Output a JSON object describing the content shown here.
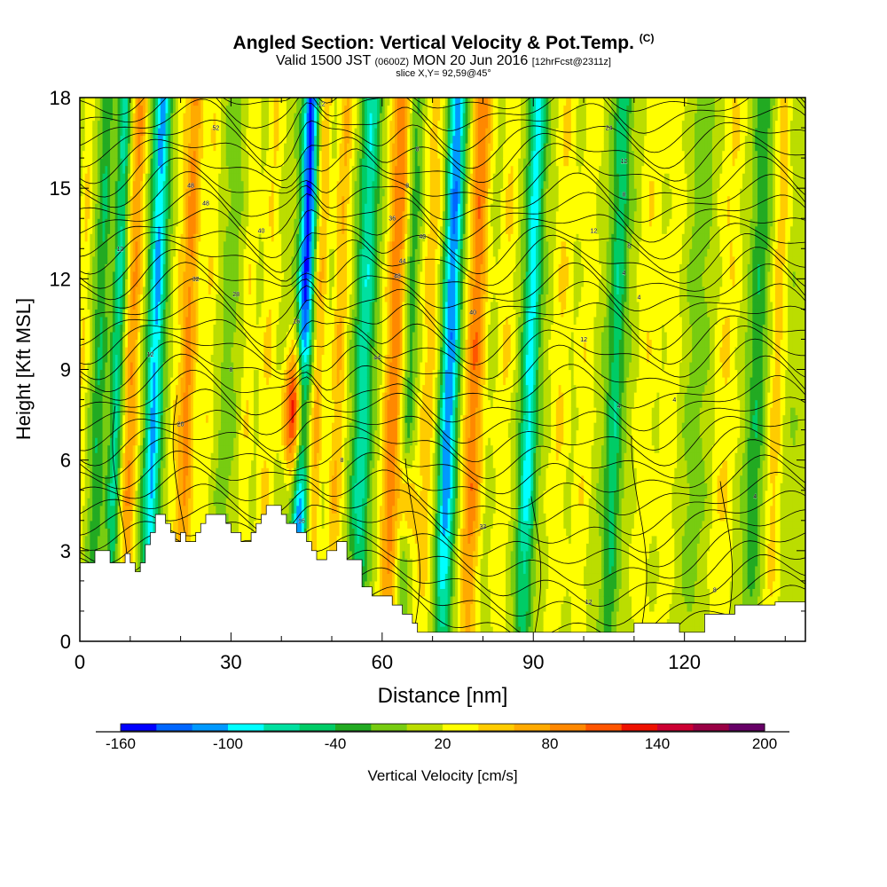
{
  "header": {
    "title_main": "Angled Section: Vertical Velocity & Pot.Temp.",
    "title_tag": "(C)",
    "valid_a": "Valid 1500 JST",
    "valid_utc": "(0600Z)",
    "valid_b": "MON 20 Jun 2016",
    "forecast": "[12hrFcst@2311z]",
    "slice": "slice X,Y= 92,59@45°"
  },
  "chart_data": {
    "type": "heatmap",
    "xlabel": "Distance [nm]",
    "ylabel": "Height [Kft MSL]",
    "x_range": [
      0,
      144
    ],
    "y_range": [
      0,
      18
    ],
    "x_ticks": [
      0,
      30,
      60,
      90,
      120
    ],
    "y_ticks": [
      0,
      3,
      6,
      9,
      12,
      15,
      18
    ],
    "colorbar": {
      "label": "Vertical Velocity [cm/s]",
      "min": -160,
      "max": 200,
      "step": 20,
      "tick_values": [
        -160,
        -100,
        -40,
        20,
        80,
        140,
        200
      ],
      "colors": [
        "#0000ff",
        "#0066ff",
        "#0099ff",
        "#00ffff",
        "#00e0a0",
        "#00cc66",
        "#22aa22",
        "#77cc11",
        "#bbdd00",
        "#ffff00",
        "#ffcc00",
        "#ffaa00",
        "#ff8800",
        "#ff5500",
        "#ee1100",
        "#cc0033",
        "#990044",
        "#660066"
      ]
    },
    "terrain_kft": [
      [
        0,
        2.6
      ],
      [
        3,
        2.6
      ],
      [
        3,
        3.0
      ],
      [
        6,
        3.0
      ],
      [
        6,
        2.6
      ],
      [
        9,
        2.6
      ],
      [
        9,
        2.9
      ],
      [
        10,
        2.9
      ],
      [
        10,
        2.6
      ],
      [
        11,
        2.6
      ],
      [
        11,
        2.3
      ],
      [
        12,
        2.3
      ],
      [
        12,
        2.6
      ],
      [
        13,
        2.6
      ],
      [
        13,
        3.2
      ],
      [
        14,
        3.2
      ],
      [
        14,
        3.6
      ],
      [
        15,
        3.6
      ],
      [
        15,
        4.2
      ],
      [
        17,
        4.2
      ],
      [
        17,
        3.9
      ],
      [
        18,
        3.9
      ],
      [
        18,
        3.6
      ],
      [
        19,
        3.6
      ],
      [
        19,
        3.3
      ],
      [
        20,
        3.3
      ],
      [
        20,
        3.6
      ],
      [
        21,
        3.6
      ],
      [
        21,
        3.3
      ],
      [
        23,
        3.3
      ],
      [
        23,
        3.6
      ],
      [
        24,
        3.6
      ],
      [
        24,
        3.9
      ],
      [
        25,
        3.9
      ],
      [
        25,
        4.2
      ],
      [
        29,
        4.2
      ],
      [
        29,
        3.9
      ],
      [
        30,
        3.9
      ],
      [
        30,
        3.6
      ],
      [
        32,
        3.6
      ],
      [
        32,
        3.3
      ],
      [
        34,
        3.3
      ],
      [
        34,
        3.6
      ],
      [
        35,
        3.6
      ],
      [
        35,
        3.9
      ],
      [
        36,
        3.9
      ],
      [
        36,
        4.2
      ],
      [
        37,
        4.2
      ],
      [
        37,
        4.5
      ],
      [
        40,
        4.5
      ],
      [
        40,
        4.2
      ],
      [
        41,
        4.2
      ],
      [
        41,
        3.9
      ],
      [
        43,
        3.9
      ],
      [
        43,
        3.6
      ],
      [
        45,
        3.6
      ],
      [
        45,
        3.3
      ],
      [
        46,
        3.3
      ],
      [
        46,
        3.0
      ],
      [
        47,
        3.0
      ],
      [
        47,
        2.7
      ],
      [
        49,
        2.7
      ],
      [
        49,
        3.0
      ],
      [
        51,
        3.0
      ],
      [
        51,
        3.3
      ],
      [
        53,
        3.3
      ],
      [
        53,
        2.7
      ],
      [
        56,
        2.7
      ],
      [
        56,
        1.8
      ],
      [
        58,
        1.8
      ],
      [
        58,
        1.5
      ],
      [
        62,
        1.5
      ],
      [
        62,
        1.2
      ],
      [
        64,
        1.2
      ],
      [
        64,
        0.9
      ],
      [
        66,
        0.9
      ],
      [
        66,
        0.6
      ],
      [
        67,
        0.6
      ],
      [
        67,
        0.3
      ],
      [
        110,
        0.3
      ],
      [
        110,
        0.6
      ],
      [
        119,
        0.6
      ],
      [
        119,
        0.3
      ],
      [
        124,
        0.3
      ],
      [
        124,
        0.9
      ],
      [
        130,
        0.9
      ],
      [
        130,
        1.2
      ],
      [
        138,
        1.2
      ],
      [
        138,
        1.3
      ],
      [
        144,
        1.3
      ]
    ],
    "theta_contour_labels": [
      "52",
      "48",
      "48",
      "40",
      "32",
      "28",
      "20",
      "16",
      "16",
      "12",
      "8",
      "8",
      "36",
      "40",
      "44",
      "48",
      "44",
      "40",
      "32",
      "24",
      "12",
      "8",
      "12",
      "8",
      "4",
      "4",
      "12",
      "4",
      "12",
      "8",
      "12",
      "12",
      "8",
      "8",
      "4",
      "4"
    ]
  },
  "colors": {
    "terrain": "#ffffff",
    "frame": "#000000"
  }
}
